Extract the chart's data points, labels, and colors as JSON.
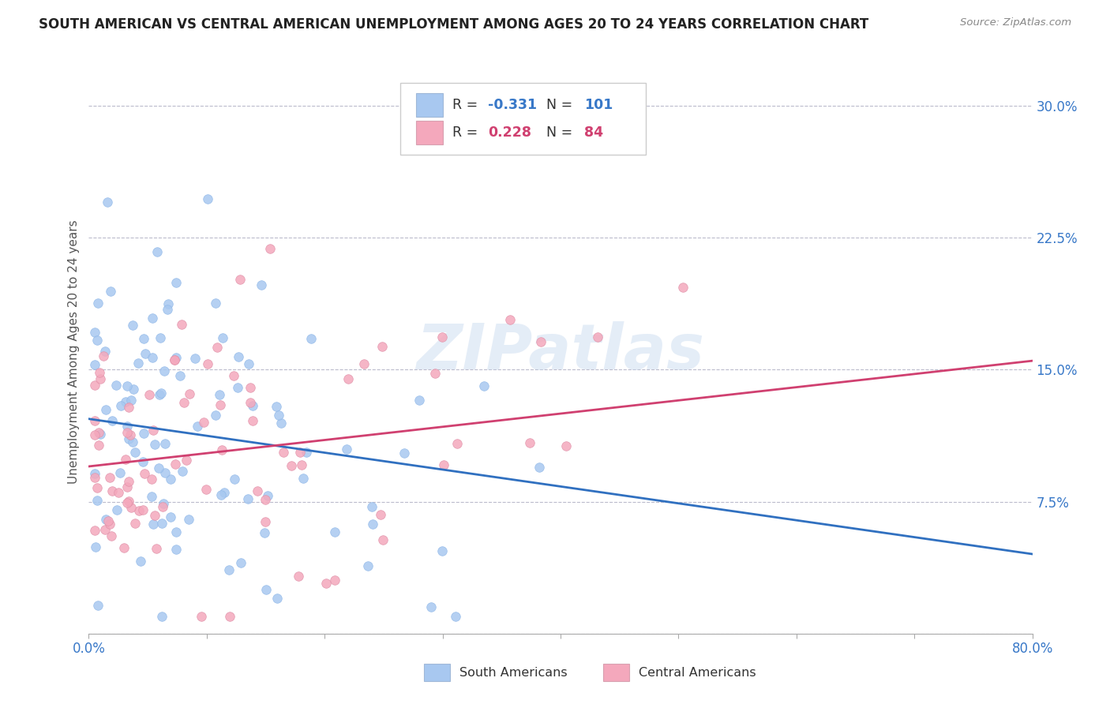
{
  "title": "SOUTH AMERICAN VS CENTRAL AMERICAN UNEMPLOYMENT AMONG AGES 20 TO 24 YEARS CORRELATION CHART",
  "source": "Source: ZipAtlas.com",
  "ylabel": "Unemployment Among Ages 20 to 24 years",
  "xlim": [
    0.0,
    0.8
  ],
  "ylim": [
    0.0,
    0.32
  ],
  "ytick_positions": [
    0.0,
    0.075,
    0.15,
    0.225,
    0.3
  ],
  "yticklabels_right": [
    "",
    "7.5%",
    "15.0%",
    "22.5%",
    "30.0%"
  ],
  "blue_R": -0.331,
  "blue_N": 101,
  "pink_R": 0.228,
  "pink_N": 84,
  "blue_color": "#A8C8F0",
  "pink_color": "#F4A8BC",
  "blue_line_color": "#3070C0",
  "pink_line_color": "#D04070",
  "watermark_text": "ZIPatlas",
  "background_color": "#FFFFFF",
  "grid_color": "#BBBBCC"
}
